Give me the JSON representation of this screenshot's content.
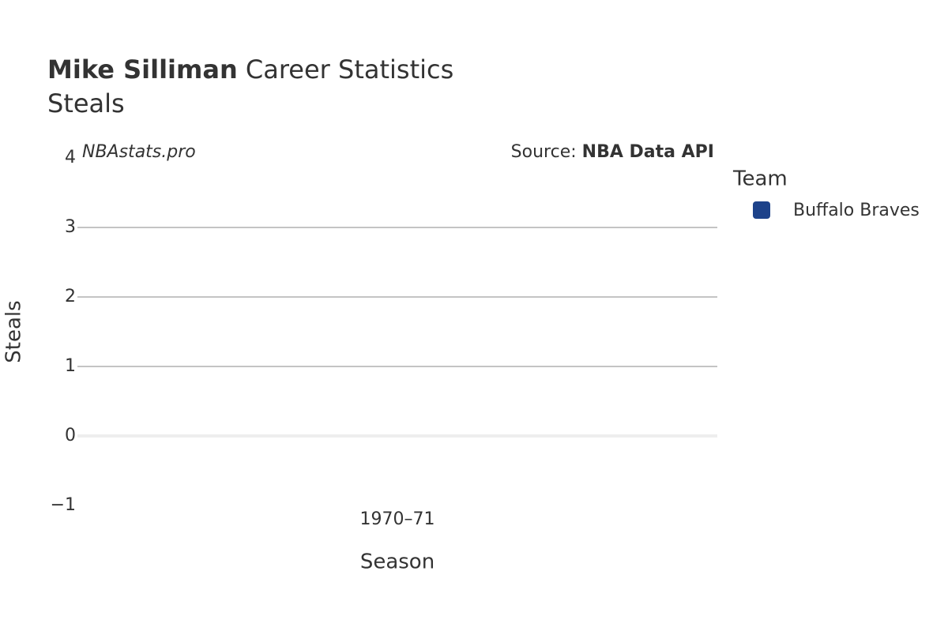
{
  "chart_data": {
    "type": "bar",
    "title_bold": "Mike Silliman",
    "title": "Career Statistics",
    "subtitle": "Steals",
    "watermark": "NBAstats.pro",
    "source_label": "Source:",
    "source": "NBA Data API",
    "x_label": "Season",
    "y_label": "Steals",
    "legend_title": "Team",
    "categories": [
      "1970–71"
    ],
    "series": [
      {
        "name": "Buffalo Braves",
        "color": "#1d428a",
        "values": [
          0
        ]
      }
    ],
    "ylim": [
      -1,
      4
    ],
    "yticks": [
      {
        "value": -1,
        "label": "−1"
      },
      0,
      1,
      2,
      3,
      4
    ],
    "grid": true,
    "legend": "right"
  }
}
